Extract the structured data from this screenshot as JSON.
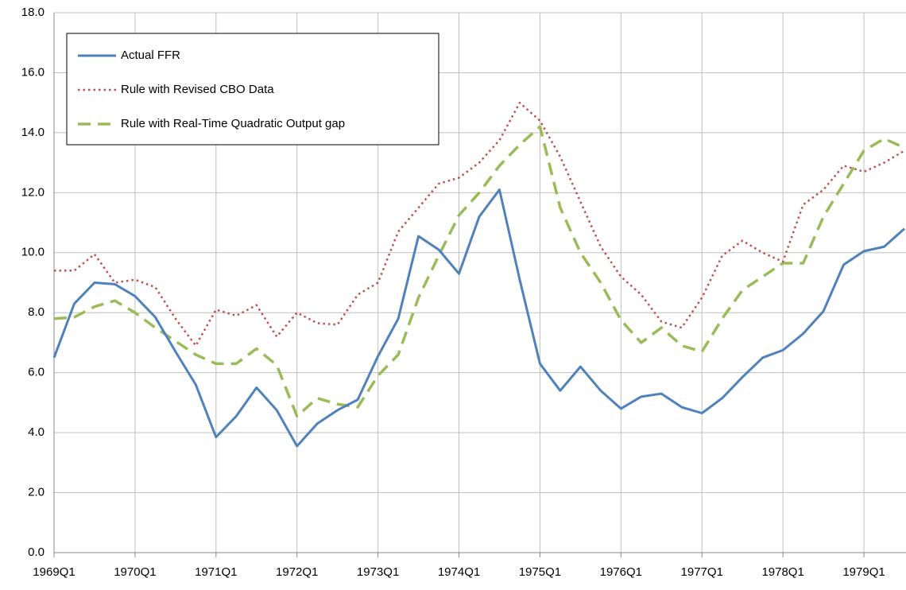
{
  "chart_data": {
    "type": "line",
    "categories": [
      "1969Q1",
      null,
      null,
      null,
      "1970Q1",
      null,
      null,
      null,
      "1971Q1",
      null,
      null,
      null,
      "1972Q1",
      null,
      null,
      null,
      "1973Q1",
      null,
      null,
      null,
      "1974Q1",
      null,
      null,
      null,
      "1975Q1",
      null,
      null,
      null,
      "1976Q1",
      null,
      null,
      null,
      "1977Q1",
      null,
      null,
      null,
      "1978Q1",
      null,
      null,
      null,
      "1979Q1",
      null,
      null
    ],
    "series": [
      {
        "name": "Actual FFR",
        "color": "#4f81bd",
        "style": "solid",
        "values": [
          6.5,
          8.3,
          9.0,
          8.95,
          8.55,
          7.85,
          6.7,
          5.6,
          3.85,
          4.55,
          5.5,
          4.75,
          3.55,
          4.3,
          4.75,
          5.1,
          6.55,
          7.8,
          10.55,
          10.1,
          9.3,
          11.2,
          12.1,
          9.1,
          6.3,
          5.4,
          6.2,
          5.4,
          4.8,
          5.2,
          5.3,
          4.85,
          4.65,
          5.15,
          5.85,
          6.5,
          6.75,
          7.3,
          8.05,
          9.6,
          10.05,
          10.2,
          10.8
        ]
      },
      {
        "name": "Rule with Revised CBO Data",
        "color": "#c0504d",
        "style": "dotted",
        "values": [
          9.4,
          9.4,
          9.95,
          9.0,
          9.1,
          8.85,
          7.8,
          6.9,
          8.1,
          7.9,
          8.25,
          7.2,
          8.0,
          7.65,
          7.6,
          8.6,
          9.0,
          10.7,
          11.5,
          12.3,
          12.5,
          13.0,
          13.75,
          15.0,
          14.4,
          13.2,
          11.7,
          10.2,
          9.2,
          8.6,
          7.7,
          7.5,
          8.5,
          9.9,
          10.4,
          10.0,
          9.7,
          11.6,
          12.1,
          12.9,
          12.7,
          13.0,
          13.4
        ]
      },
      {
        "name": "Rule with Real-Time Quadratic Output gap",
        "color": "#9bbb59",
        "style": "dashed",
        "values": [
          7.8,
          7.85,
          8.2,
          8.4,
          8.0,
          7.5,
          7.05,
          6.6,
          6.3,
          6.3,
          6.8,
          6.25,
          4.55,
          5.15,
          4.95,
          4.85,
          5.9,
          6.6,
          8.5,
          9.9,
          11.25,
          12.0,
          12.9,
          13.6,
          14.2,
          11.5,
          10.0,
          9.0,
          7.75,
          7.0,
          7.5,
          6.9,
          6.7,
          7.8,
          8.75,
          9.2,
          9.65,
          9.65,
          11.2,
          12.3,
          13.4,
          13.8,
          13.5
        ]
      }
    ],
    "ylim": [
      0,
      18
    ],
    "yticks": [
      {
        "value": 0,
        "label": "0.0"
      },
      {
        "value": 2,
        "label": "2.0"
      },
      {
        "value": 4,
        "label": "4.0"
      },
      {
        "value": 6,
        "label": "6.0"
      },
      {
        "value": 8,
        "label": "8.0"
      },
      {
        "value": 10,
        "label": "10.0"
      },
      {
        "value": 12,
        "label": "12.0"
      },
      {
        "value": 14,
        "label": "14.0"
      },
      {
        "value": 16,
        "label": "16.0"
      },
      {
        "value": 18,
        "label": "18.0"
      }
    ],
    "grid": true,
    "legend": "upper left"
  }
}
